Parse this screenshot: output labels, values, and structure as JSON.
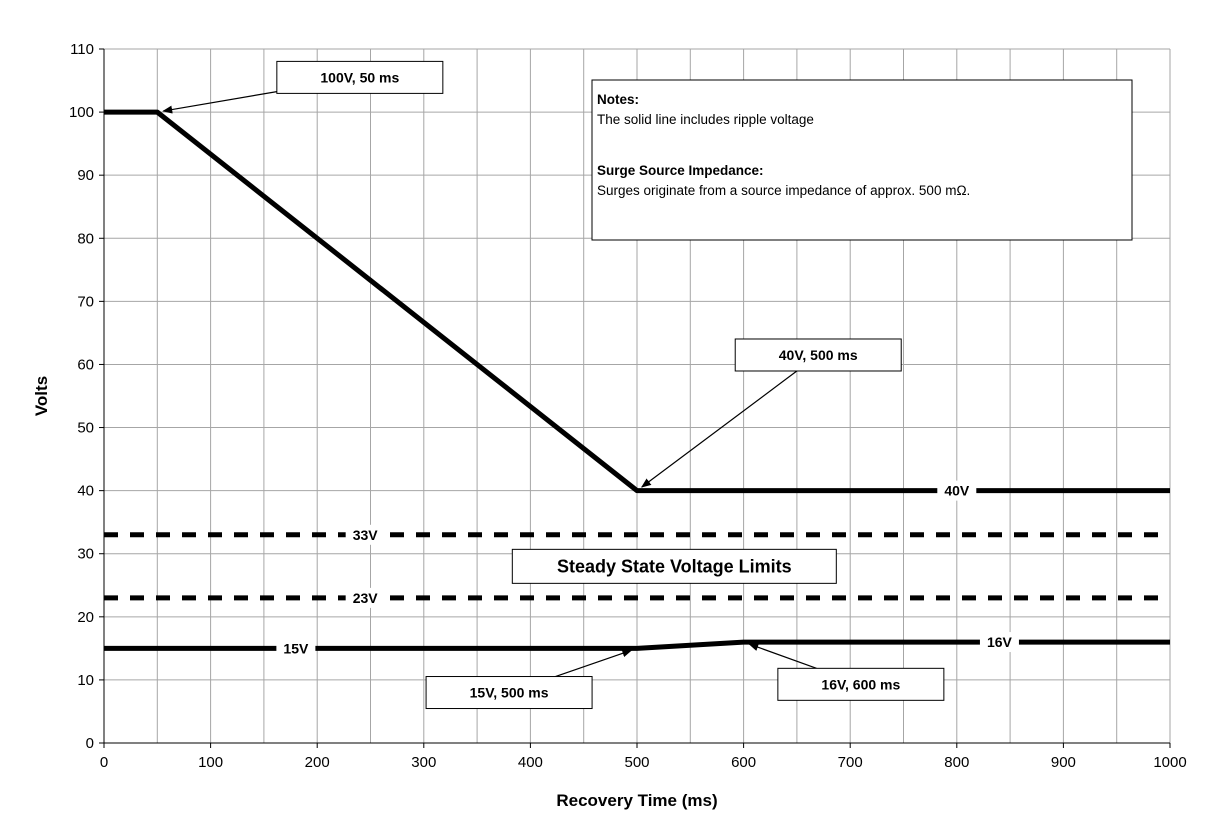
{
  "chart_data": {
    "type": "line",
    "xlabel": "Recovery Time (ms)",
    "ylabel": "Volts",
    "xlim": [
      0,
      1000
    ],
    "ylim": [
      0,
      110
    ],
    "x_ticks": [
      0,
      100,
      200,
      300,
      400,
      500,
      600,
      700,
      800,
      900,
      1000
    ],
    "y_ticks": [
      0,
      10,
      20,
      30,
      40,
      50,
      60,
      70,
      80,
      90,
      100,
      110
    ],
    "x_minor_step": 50,
    "grid": true,
    "series": [
      {
        "style": "solid",
        "points": [
          [
            0,
            100
          ],
          [
            50,
            100
          ],
          [
            500,
            40
          ],
          [
            1000,
            40
          ]
        ],
        "label": "40V",
        "label_at": [
          800,
          40
        ]
      },
      {
        "style": "solid",
        "points": [
          [
            0,
            15
          ],
          [
            500,
            15
          ],
          [
            600,
            16
          ],
          [
            1000,
            16
          ]
        ],
        "label": "16V",
        "label_at": [
          840,
          16
        ]
      },
      {
        "style": "dashed",
        "points": [
          [
            0,
            33
          ],
          [
            1000,
            33
          ]
        ],
        "label": "33V",
        "label_at": [
          245,
          33
        ]
      },
      {
        "style": "dashed",
        "points": [
          [
            0,
            23
          ],
          [
            1000,
            23
          ]
        ],
        "label": "23V",
        "label_at": [
          245,
          23
        ]
      }
    ],
    "line_labels": [
      {
        "text": "15V",
        "at": [
          180,
          15
        ]
      }
    ],
    "center_label": {
      "text": "Steady State Voltage Limits",
      "at": [
        535,
        28
      ]
    },
    "annotations": [
      {
        "text": "100V, 50 ms",
        "box_center": [
          240,
          105.5
        ],
        "point": [
          50,
          100
        ]
      },
      {
        "text": "40V, 500 ms",
        "box_center": [
          670,
          61.5
        ],
        "point": [
          500,
          40
        ]
      },
      {
        "text": "15V, 500 ms",
        "box_center": [
          380,
          8
        ],
        "point": [
          500,
          15
        ]
      },
      {
        "text": "16V, 600 ms",
        "box_center": [
          710,
          9.3
        ],
        "point": [
          600,
          16
        ]
      }
    ],
    "notes": {
      "heading": "Notes:",
      "line1": "The solid line includes ripple voltage",
      "heading2": "Surge Source Impedance:",
      "line2": "Surges originate from a source impedance of approx. 500 mΩ."
    }
  }
}
